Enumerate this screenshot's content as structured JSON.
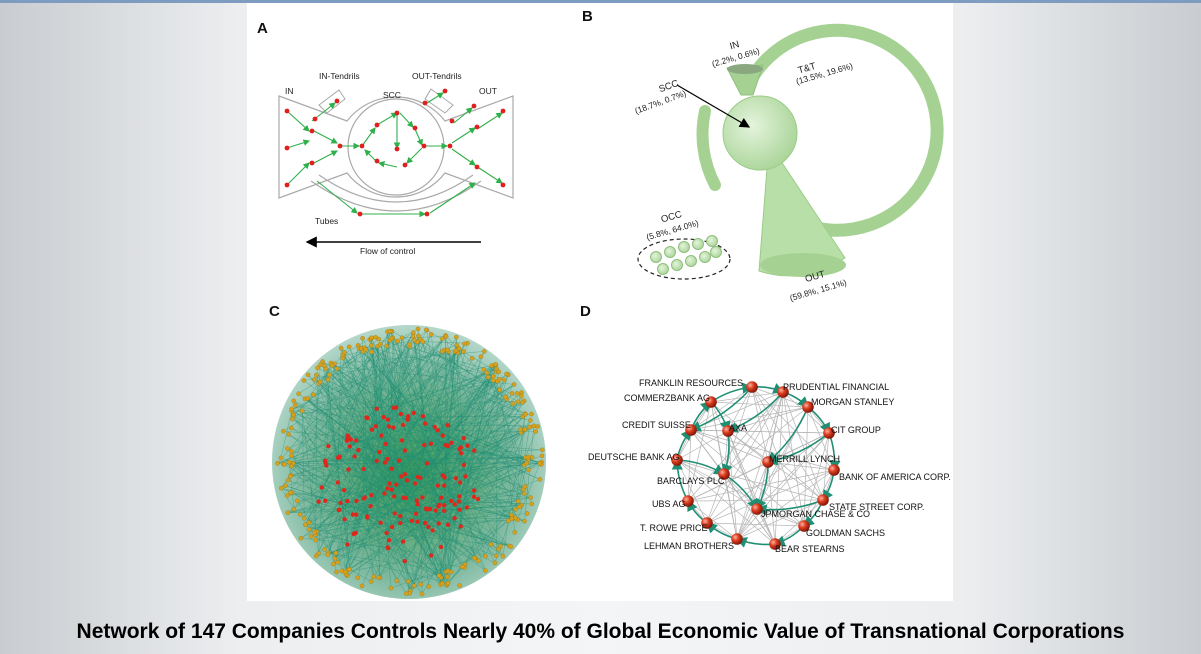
{
  "caption": "Network of 147 Companies Controls Nearly 40% of Global Economic Value of Transnational Corporations",
  "colors": {
    "edge_green": "#2fb04a",
    "node_red": "#e01f1f",
    "bowtie_fill": "#c6e8b8",
    "network_edge": "#2e9c82",
    "node_orange": "#c8901a",
    "company_edge": "#1f8f74"
  },
  "panel_a": {
    "label": "A",
    "in": "IN",
    "in_tendrils": "IN-Tendrils",
    "out_tendrils": "OUT-Tendrils",
    "out": "OUT",
    "scc": "SCC",
    "tubes": "Tubes",
    "flow": "Flow of control"
  },
  "panel_b": {
    "label": "B",
    "in_name": "IN",
    "in_vals": "(2.2%, 0.6%)",
    "tt_name": "T&T",
    "tt_vals": "(13.5%, 19.6%)",
    "scc_name": "SCC",
    "scc_vals": "(18.7%, 0.7%)",
    "occ_name": "OCC",
    "occ_vals": "(5.8%, 64.0%)",
    "out_name": "OUT",
    "out_vals": "(59.8%, 15.1%)"
  },
  "panel_c": {
    "label": "C"
  },
  "panel_d": {
    "label": "D",
    "companies": [
      "FRANKLIN RESOURCES",
      "PRUDENTIAL FINANCIAL",
      "COMMERZBANK AG",
      "MORGAN STANLEY",
      "CREDIT SUISSE",
      "AXA",
      "CIT GROUP",
      "DEUTSCHE BANK AG",
      "MERRILL LYNCH",
      "BARCLAYS PLC",
      "BANK OF AMERICA CORP.",
      "UBS AG",
      "STATE STREET CORP.",
      "JPMORGAN CHASE & CO",
      "T. ROWE PRICE",
      "GOLDMAN SACHS",
      "LEHMAN BROTHERS",
      "BEAR STEARNS"
    ]
  }
}
